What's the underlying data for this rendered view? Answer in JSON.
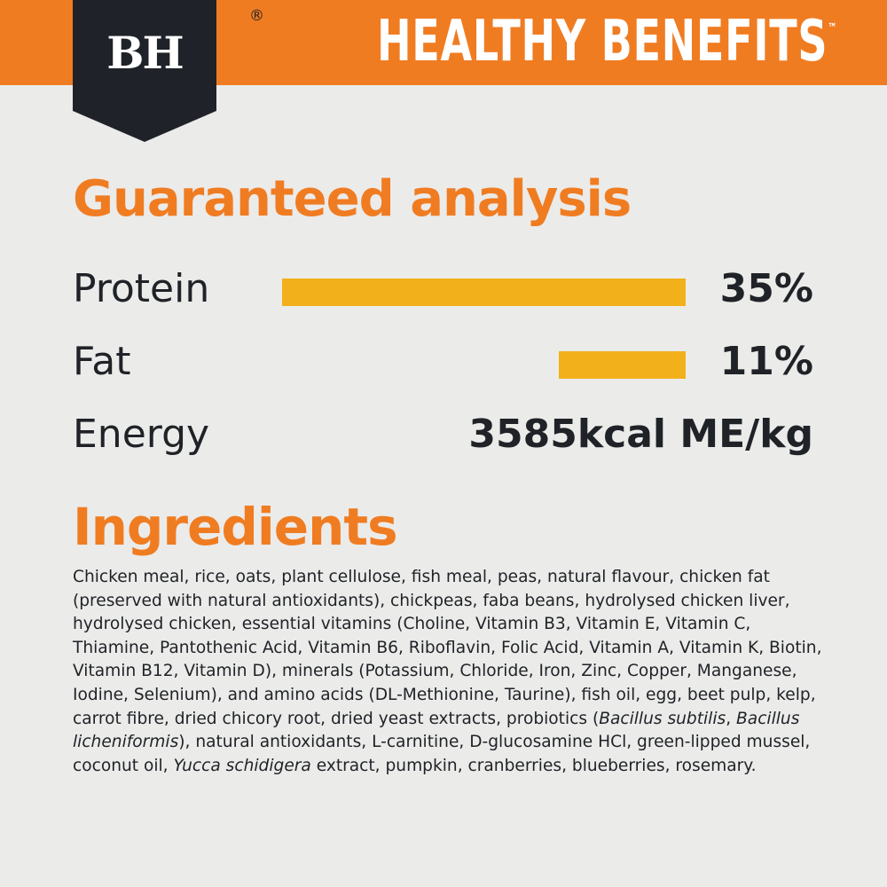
{
  "header": {
    "logo": "BH",
    "registered": "®",
    "tagline": "HEALTHY BENEFITS",
    "trademark": "™"
  },
  "analysis": {
    "title": "Guaranteed analysis",
    "rows": [
      {
        "label": "Protein",
        "value": 35,
        "amount": "35%"
      },
      {
        "label": "Fat",
        "value": 11,
        "amount": "11%"
      },
      {
        "label": "Energy",
        "amount": "3585kcal ME/kg"
      }
    ]
  },
  "ingredients": {
    "title": "Ingredients",
    "segments": [
      {
        "text": "Chicken meal, rice, oats, plant cellulose, fish meal, peas, natural flavour, chicken fat (preserved with natural antioxidants), chickpeas, faba beans, hydrolysed chicken liver, hydrolysed chicken, essential vitamins (Choline, Vitamin B3, Vitamin E, Vitamin C, Thiamine, Pantothenic Acid, Vitamin B6, Riboflavin, Folic Acid, Vitamin A, Vitamin K, Biotin, Vitamin B12, Vitamin D), minerals (Potassium, Chloride, Iron, Zinc, Copper, Manganese, Iodine, Selenium), and amino acids (DL-Methionine, Taurine), fish oil, egg, beet pulp, kelp, carrot fibre, dried chicory root, dried yeast extracts, probiotics (",
        "italic": false
      },
      {
        "text": "Bacillus subtilis",
        "italic": true
      },
      {
        "text": ", ",
        "italic": false
      },
      {
        "text": "Bacillus licheniformis",
        "italic": true
      },
      {
        "text": "), natural antioxidants, L-carnitine, D-glucosamine HCl, green-lipped mussel, coconut oil, ",
        "italic": false
      },
      {
        "text": "Yucca schidigera",
        "italic": true
      },
      {
        "text": " extract, pumpkin, cranberries, blueberries, rosemary.",
        "italic": false
      }
    ]
  }
}
